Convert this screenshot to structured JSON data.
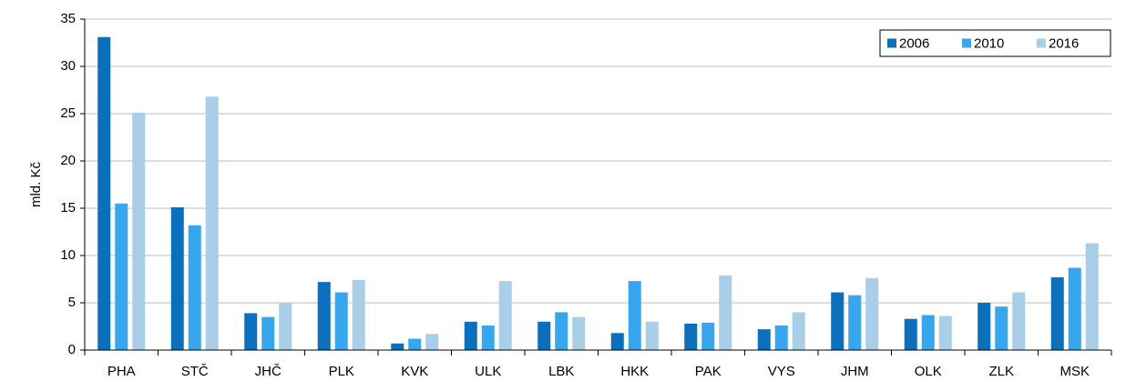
{
  "chart_data": {
    "type": "bar",
    "y_label": "mld. Kč",
    "categories": [
      "PHA",
      "STČ",
      "JHČ",
      "PLK",
      "KVK",
      "ULK",
      "LBK",
      "HKK",
      "PAK",
      "VYS",
      "JHM",
      "OLK",
      "ZLK",
      "MSK"
    ],
    "series": [
      {
        "name": "2006",
        "color": "#0a6fbd",
        "values": [
          33.1,
          15.1,
          3.9,
          7.2,
          0.7,
          3.0,
          3.0,
          1.8,
          2.8,
          2.2,
          6.1,
          3.3,
          5.0,
          7.7
        ]
      },
      {
        "name": "2010",
        "color": "#36a6ee",
        "values": [
          15.5,
          13.2,
          3.5,
          6.1,
          1.2,
          2.6,
          4.0,
          7.3,
          2.9,
          2.6,
          5.8,
          3.7,
          4.6,
          8.7
        ]
      },
      {
        "name": "2016",
        "color": "#a8cee8",
        "values": [
          25.1,
          26.8,
          5.0,
          7.4,
          1.7,
          7.3,
          3.5,
          3.0,
          7.9,
          4.0,
          7.6,
          3.6,
          6.1,
          11.3
        ]
      }
    ],
    "ylim": [
      0,
      35
    ],
    "yticks": [
      0,
      5,
      10,
      15,
      20,
      25,
      30,
      35
    ],
    "grid": true,
    "legend": "upper-right"
  }
}
